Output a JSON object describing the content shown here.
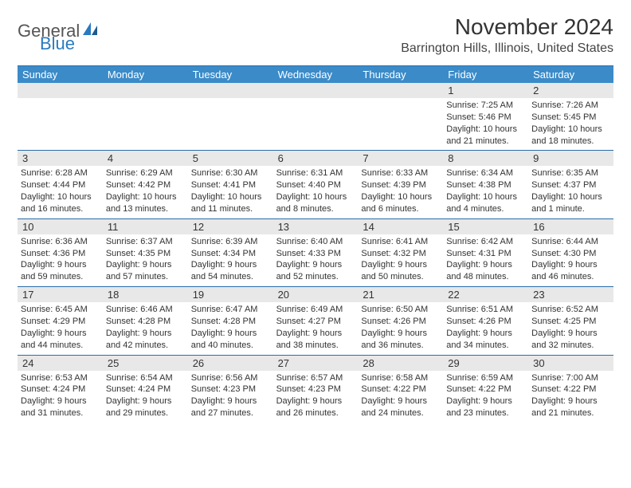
{
  "logo": {
    "part1": "General",
    "part2": "Blue"
  },
  "title": "November 2024",
  "location": "Barrington Hills, Illinois, United States",
  "colors": {
    "header_bg": "#3b8bc9",
    "border": "#2a6ea8",
    "date_row_bg": "#e8e8e8",
    "logo_blue": "#2a7abf",
    "text": "#333333"
  },
  "day_names": [
    "Sunday",
    "Monday",
    "Tuesday",
    "Wednesday",
    "Thursday",
    "Friday",
    "Saturday"
  ],
  "weeks": [
    [
      {
        "date": "",
        "sunrise": "",
        "sunset": "",
        "daylight": ""
      },
      {
        "date": "",
        "sunrise": "",
        "sunset": "",
        "daylight": ""
      },
      {
        "date": "",
        "sunrise": "",
        "sunset": "",
        "daylight": ""
      },
      {
        "date": "",
        "sunrise": "",
        "sunset": "",
        "daylight": ""
      },
      {
        "date": "",
        "sunrise": "",
        "sunset": "",
        "daylight": ""
      },
      {
        "date": "1",
        "sunrise": "Sunrise: 7:25 AM",
        "sunset": "Sunset: 5:46 PM",
        "daylight": "Daylight: 10 hours and 21 minutes."
      },
      {
        "date": "2",
        "sunrise": "Sunrise: 7:26 AM",
        "sunset": "Sunset: 5:45 PM",
        "daylight": "Daylight: 10 hours and 18 minutes."
      }
    ],
    [
      {
        "date": "3",
        "sunrise": "Sunrise: 6:28 AM",
        "sunset": "Sunset: 4:44 PM",
        "daylight": "Daylight: 10 hours and 16 minutes."
      },
      {
        "date": "4",
        "sunrise": "Sunrise: 6:29 AM",
        "sunset": "Sunset: 4:42 PM",
        "daylight": "Daylight: 10 hours and 13 minutes."
      },
      {
        "date": "5",
        "sunrise": "Sunrise: 6:30 AM",
        "sunset": "Sunset: 4:41 PM",
        "daylight": "Daylight: 10 hours and 11 minutes."
      },
      {
        "date": "6",
        "sunrise": "Sunrise: 6:31 AM",
        "sunset": "Sunset: 4:40 PM",
        "daylight": "Daylight: 10 hours and 8 minutes."
      },
      {
        "date": "7",
        "sunrise": "Sunrise: 6:33 AM",
        "sunset": "Sunset: 4:39 PM",
        "daylight": "Daylight: 10 hours and 6 minutes."
      },
      {
        "date": "8",
        "sunrise": "Sunrise: 6:34 AM",
        "sunset": "Sunset: 4:38 PM",
        "daylight": "Daylight: 10 hours and 4 minutes."
      },
      {
        "date": "9",
        "sunrise": "Sunrise: 6:35 AM",
        "sunset": "Sunset: 4:37 PM",
        "daylight": "Daylight: 10 hours and 1 minute."
      }
    ],
    [
      {
        "date": "10",
        "sunrise": "Sunrise: 6:36 AM",
        "sunset": "Sunset: 4:36 PM",
        "daylight": "Daylight: 9 hours and 59 minutes."
      },
      {
        "date": "11",
        "sunrise": "Sunrise: 6:37 AM",
        "sunset": "Sunset: 4:35 PM",
        "daylight": "Daylight: 9 hours and 57 minutes."
      },
      {
        "date": "12",
        "sunrise": "Sunrise: 6:39 AM",
        "sunset": "Sunset: 4:34 PM",
        "daylight": "Daylight: 9 hours and 54 minutes."
      },
      {
        "date": "13",
        "sunrise": "Sunrise: 6:40 AM",
        "sunset": "Sunset: 4:33 PM",
        "daylight": "Daylight: 9 hours and 52 minutes."
      },
      {
        "date": "14",
        "sunrise": "Sunrise: 6:41 AM",
        "sunset": "Sunset: 4:32 PM",
        "daylight": "Daylight: 9 hours and 50 minutes."
      },
      {
        "date": "15",
        "sunrise": "Sunrise: 6:42 AM",
        "sunset": "Sunset: 4:31 PM",
        "daylight": "Daylight: 9 hours and 48 minutes."
      },
      {
        "date": "16",
        "sunrise": "Sunrise: 6:44 AM",
        "sunset": "Sunset: 4:30 PM",
        "daylight": "Daylight: 9 hours and 46 minutes."
      }
    ],
    [
      {
        "date": "17",
        "sunrise": "Sunrise: 6:45 AM",
        "sunset": "Sunset: 4:29 PM",
        "daylight": "Daylight: 9 hours and 44 minutes."
      },
      {
        "date": "18",
        "sunrise": "Sunrise: 6:46 AM",
        "sunset": "Sunset: 4:28 PM",
        "daylight": "Daylight: 9 hours and 42 minutes."
      },
      {
        "date": "19",
        "sunrise": "Sunrise: 6:47 AM",
        "sunset": "Sunset: 4:28 PM",
        "daylight": "Daylight: 9 hours and 40 minutes."
      },
      {
        "date": "20",
        "sunrise": "Sunrise: 6:49 AM",
        "sunset": "Sunset: 4:27 PM",
        "daylight": "Daylight: 9 hours and 38 minutes."
      },
      {
        "date": "21",
        "sunrise": "Sunrise: 6:50 AM",
        "sunset": "Sunset: 4:26 PM",
        "daylight": "Daylight: 9 hours and 36 minutes."
      },
      {
        "date": "22",
        "sunrise": "Sunrise: 6:51 AM",
        "sunset": "Sunset: 4:26 PM",
        "daylight": "Daylight: 9 hours and 34 minutes."
      },
      {
        "date": "23",
        "sunrise": "Sunrise: 6:52 AM",
        "sunset": "Sunset: 4:25 PM",
        "daylight": "Daylight: 9 hours and 32 minutes."
      }
    ],
    [
      {
        "date": "24",
        "sunrise": "Sunrise: 6:53 AM",
        "sunset": "Sunset: 4:24 PM",
        "daylight": "Daylight: 9 hours and 31 minutes."
      },
      {
        "date": "25",
        "sunrise": "Sunrise: 6:54 AM",
        "sunset": "Sunset: 4:24 PM",
        "daylight": "Daylight: 9 hours and 29 minutes."
      },
      {
        "date": "26",
        "sunrise": "Sunrise: 6:56 AM",
        "sunset": "Sunset: 4:23 PM",
        "daylight": "Daylight: 9 hours and 27 minutes."
      },
      {
        "date": "27",
        "sunrise": "Sunrise: 6:57 AM",
        "sunset": "Sunset: 4:23 PM",
        "daylight": "Daylight: 9 hours and 26 minutes."
      },
      {
        "date": "28",
        "sunrise": "Sunrise: 6:58 AM",
        "sunset": "Sunset: 4:22 PM",
        "daylight": "Daylight: 9 hours and 24 minutes."
      },
      {
        "date": "29",
        "sunrise": "Sunrise: 6:59 AM",
        "sunset": "Sunset: 4:22 PM",
        "daylight": "Daylight: 9 hours and 23 minutes."
      },
      {
        "date": "30",
        "sunrise": "Sunrise: 7:00 AM",
        "sunset": "Sunset: 4:22 PM",
        "daylight": "Daylight: 9 hours and 21 minutes."
      }
    ]
  ]
}
